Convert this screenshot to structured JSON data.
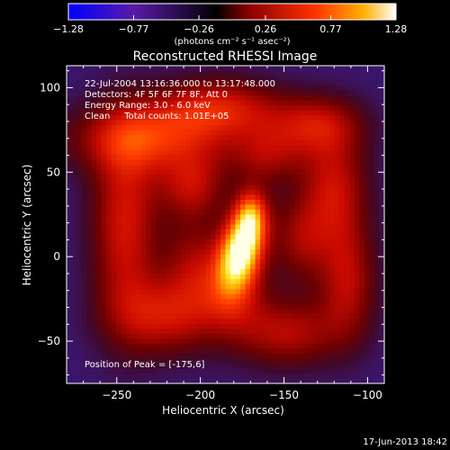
{
  "chart_data": {
    "type": "heatmap",
    "title": "Reconstructed RHESSI Image",
    "xlabel": "Heliocentric X (arcsec)",
    "ylabel": "Heliocentric Y (arcsec)",
    "xlim": [
      -280,
      -90
    ],
    "ylim": [
      -75,
      113
    ],
    "xticks": [
      -250,
      -200,
      -150,
      -100
    ],
    "xtick_labels": [
      "−250",
      "−200",
      "−150",
      "−100"
    ],
    "yticks": [
      -50,
      0,
      50,
      100
    ],
    "ytick_labels": [
      "−50",
      "0",
      "50",
      "100"
    ],
    "colorbar": {
      "range": [
        -1.28,
        1.28
      ],
      "ticks": [
        -1.28,
        -0.77,
        -0.26,
        0.26,
        0.77,
        1.28
      ],
      "tick_labels": [
        "−1.28",
        "−0.77",
        "−0.26",
        "0.26",
        "0.77",
        "1.28"
      ],
      "units_label": "(photons cm⁻² s⁻¹ asec⁻²)",
      "colors": [
        "#0000ff",
        "#5a1aa8",
        "#000000",
        "#8a0000",
        "#ff3000",
        "#ffb000",
        "#ffffff"
      ]
    },
    "annotations": [
      "22-Jul-2004 13:16:36.000 to 13:17:48.000",
      "Detectors: 4F 5F 6F 7F 8F, Att 0",
      "Energy Range: 3.0 - 6.0 keV",
      "Clean     Total counts: 1.01E+05"
    ],
    "peak_label": "Position of Peak = [-175,6]",
    "peak": {
      "x": -175,
      "y": 6
    },
    "timestamp": "17-Jun-2013 18:42",
    "background_color": "#3a1670",
    "components": [
      {
        "x": -175,
        "y": 6,
        "sx": 9,
        "sy": 18,
        "amp": 1.28,
        "angle": 15
      },
      {
        "x": -170,
        "y": 25,
        "sx": 6,
        "sy": 10,
        "amp": 0.45,
        "angle": 0
      },
      {
        "x": -180,
        "y": -20,
        "sx": 14,
        "sy": 18,
        "amp": 0.42,
        "angle": 0
      },
      {
        "x": -230,
        "y": 70,
        "sx": 32,
        "sy": 14,
        "amp": 0.6,
        "angle": 0
      },
      {
        "x": -190,
        "y": 88,
        "sx": 26,
        "sy": 12,
        "amp": 0.55,
        "angle": 0
      },
      {
        "x": -245,
        "y": 20,
        "sx": 14,
        "sy": 40,
        "amp": 0.55,
        "angle": 0
      },
      {
        "x": -222,
        "y": -35,
        "sx": 22,
        "sy": 16,
        "amp": 0.5,
        "angle": 0
      },
      {
        "x": -205,
        "y": 42,
        "sx": 14,
        "sy": 14,
        "amp": 0.45,
        "angle": 0
      },
      {
        "x": -120,
        "y": 40,
        "sx": 14,
        "sy": 24,
        "amp": 0.5,
        "angle": 0
      },
      {
        "x": -132,
        "y": 78,
        "sx": 20,
        "sy": 12,
        "amp": 0.45,
        "angle": 0
      },
      {
        "x": -112,
        "y": -15,
        "sx": 12,
        "sy": 24,
        "amp": 0.45,
        "angle": 0
      },
      {
        "x": -148,
        "y": -45,
        "sx": 22,
        "sy": 14,
        "amp": 0.45,
        "angle": 0
      },
      {
        "x": -160,
        "y": 60,
        "sx": 16,
        "sy": 12,
        "amp": 0.35,
        "angle": 0
      },
      {
        "x": -140,
        "y": 10,
        "sx": 12,
        "sy": 18,
        "amp": 0.35,
        "angle": 0
      },
      {
        "x": -205,
        "y": -5,
        "sx": 12,
        "sy": 20,
        "amp": 0.35,
        "angle": 0
      }
    ]
  }
}
